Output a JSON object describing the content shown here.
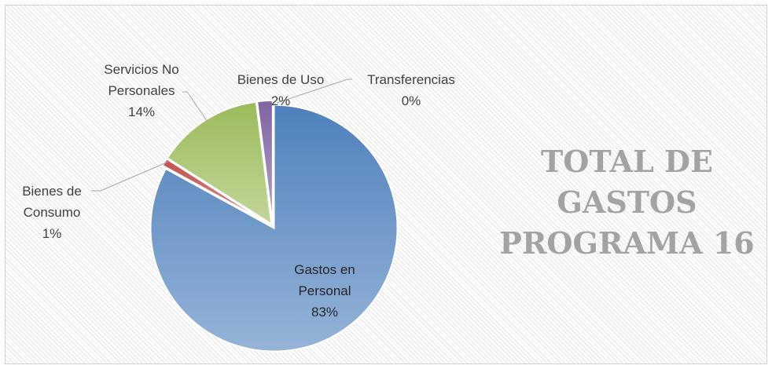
{
  "chart_data": {
    "type": "pie",
    "title": "TOTAL DE GASTOS PROGRAMA 16",
    "categories": [
      "Gastos en Personal",
      "Bienes de Consumo",
      "Servicios No Personales",
      "Bienes de Uso",
      "Transferencias"
    ],
    "values": [
      83,
      1,
      14,
      2,
      0
    ],
    "value_labels": [
      "83%",
      "1%",
      "14%",
      "2%",
      "0%"
    ],
    "colors": [
      "#4f81bd",
      "#c0504d",
      "#9bbb59",
      "#8064a2",
      "#4bacc6"
    ]
  }
}
